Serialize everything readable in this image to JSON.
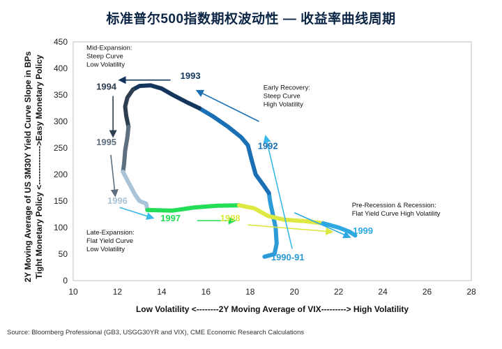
{
  "chart_data": {
    "type": "line",
    "title": "标准普尔500指数期权波动性 — 收益率曲线周期",
    "xlabel": "Low Volatility <--------2Y Moving Average of VIX---------> High Volatility",
    "ylabel_line1": "2Y Moving Average of US 3M30Y Yield Curve Slope in BPs",
    "ylabel_line2": "Tight Monetary Policy <-------------->Easy Monetary Policy",
    "xlim": [
      10,
      28
    ],
    "ylim": [
      0,
      450
    ],
    "x_ticks": [
      10,
      12,
      14,
      16,
      18,
      20,
      22,
      24,
      26,
      28
    ],
    "y_ticks": [
      0,
      50,
      100,
      150,
      200,
      250,
      300,
      350,
      400,
      450
    ],
    "grid": false,
    "series": [
      {
        "name": "1990-91",
        "color": "#2b9ad6",
        "x": [
          18.65,
          19.1,
          19.2,
          19.15,
          19.0,
          18.9,
          18.85
        ],
        "y": [
          45,
          50,
          70,
          100,
          130,
          150,
          165
        ]
      },
      {
        "name": "1992",
        "color": "#1a6fb5",
        "x": [
          18.85,
          18.6,
          18.25,
          18.05,
          17.9,
          17.6,
          17.0,
          16.3,
          15.7
        ],
        "y": [
          165,
          180,
          200,
          230,
          255,
          270,
          290,
          310,
          325
        ]
      },
      {
        "name": "1993",
        "color": "#14365c",
        "x": [
          15.7,
          15.1,
          14.5,
          14.0,
          13.5,
          13.0,
          12.7
        ],
        "y": [
          325,
          337,
          350,
          362,
          368,
          367,
          360
        ]
      },
      {
        "name": "1994",
        "color": "#2d3e50",
        "x": [
          12.7,
          12.45,
          12.35,
          12.4,
          12.5
        ],
        "y": [
          360,
          345,
          328,
          310,
          290
        ]
      },
      {
        "name": "1995",
        "color": "#5e6f80",
        "x": [
          12.5,
          12.45,
          12.35,
          12.3,
          12.25
        ],
        "y": [
          290,
          270,
          245,
          220,
          205
        ]
      },
      {
        "name": "1996",
        "color": "#a9c4d8",
        "x": [
          12.25,
          12.5,
          12.8,
          13.0,
          13.3,
          13.35
        ],
        "y": [
          205,
          185,
          162,
          150,
          145,
          133
        ]
      },
      {
        "name": "1997",
        "color": "#22dd55",
        "x": [
          13.35,
          14.5,
          15.5,
          16.5,
          17.5
        ],
        "y": [
          133,
          132,
          138,
          141,
          142
        ]
      },
      {
        "name": "1998",
        "color": "#dde842",
        "x": [
          17.5,
          18.2,
          18.8,
          19.5,
          20.5,
          21.3
        ],
        "y": [
          142,
          136,
          122,
          115,
          112,
          108
        ]
      },
      {
        "name": "1999",
        "color": "#2ea8e0",
        "x": [
          21.3,
          22.0,
          22.5,
          22.75
        ],
        "y": [
          108,
          100,
          92,
          85
        ]
      }
    ],
    "year_labels": [
      {
        "text": "1993",
        "x": 15.3,
        "y": 380,
        "color": "#14365c"
      },
      {
        "text": "1994",
        "x": 11.5,
        "y": 360,
        "color": "#2d3e50"
      },
      {
        "text": "1995",
        "x": 11.5,
        "y": 255,
        "color": "#5e6f80"
      },
      {
        "text": "1996",
        "x": 12.0,
        "y": 145,
        "color": "#a9c4d8"
      },
      {
        "text": "1997",
        "x": 14.4,
        "y": 112,
        "color": "#22dd55"
      },
      {
        "text": "1998",
        "x": 17.1,
        "y": 112,
        "color": "#dde842"
      },
      {
        "text": "1999",
        "x": 23.1,
        "y": 88,
        "color": "#2ea8e0"
      },
      {
        "text": "1992",
        "x": 18.8,
        "y": 248,
        "color": "#1a6fb5"
      },
      {
        "text": "1990-91",
        "x": 19.7,
        "y": 38,
        "color": "#2b9ad6"
      }
    ],
    "annotations": [
      {
        "lines": [
          "Mid-Expansion:",
          "Steep Curve",
          "Low Volatility"
        ],
        "x": 10.6,
        "y": 435
      },
      {
        "lines": [
          "Early Recovery:",
          "Steep Curve",
          "High Volatility"
        ],
        "x": 18.6,
        "y": 360
      },
      {
        "lines": [
          "Late-Expansion:",
          "Flat Yield Curve",
          "Low Volatility"
        ],
        "x": 10.6,
        "y": 87
      },
      {
        "lines": [
          "Pre-Recession & Recession:",
          "Flat Yield Curve High Volatility"
        ],
        "x": 22.6,
        "y": 138
      }
    ],
    "arrows": [
      {
        "from": [
          14.4,
          378
        ],
        "to": [
          12.1,
          378
        ],
        "color": "#14365c"
      },
      {
        "from": [
          11.8,
          348
        ],
        "to": [
          11.8,
          272
        ],
        "color": "#2d3e50"
      },
      {
        "from": [
          11.7,
          237
        ],
        "to": [
          11.9,
          160
        ],
        "color": "#5e6f80"
      },
      {
        "from": [
          12.1,
          138
        ],
        "to": [
          13.6,
          118
        ],
        "color": "#39b8ea"
      },
      {
        "from": [
          15.6,
          113
        ],
        "to": [
          17.3,
          113
        ],
        "color": "#22dd55"
      },
      {
        "from": [
          17.9,
          105
        ],
        "to": [
          21.7,
          92
        ],
        "color": "#dde842"
      },
      {
        "from": [
          20.0,
          128
        ],
        "to": [
          22.5,
          82
        ],
        "color": "#2ea8e0"
      },
      {
        "from": [
          18.4,
          300
        ],
        "to": [
          15.6,
          358
        ],
        "color": "#1a6fb5"
      },
      {
        "from": [
          19.9,
          60
        ],
        "to": [
          18.7,
          272
        ],
        "color": "#39b8ea"
      }
    ]
  },
  "source": "Source: Bloomberg Professional (GB3, USGG30YR and VIX), CME Economic Research Calculations"
}
